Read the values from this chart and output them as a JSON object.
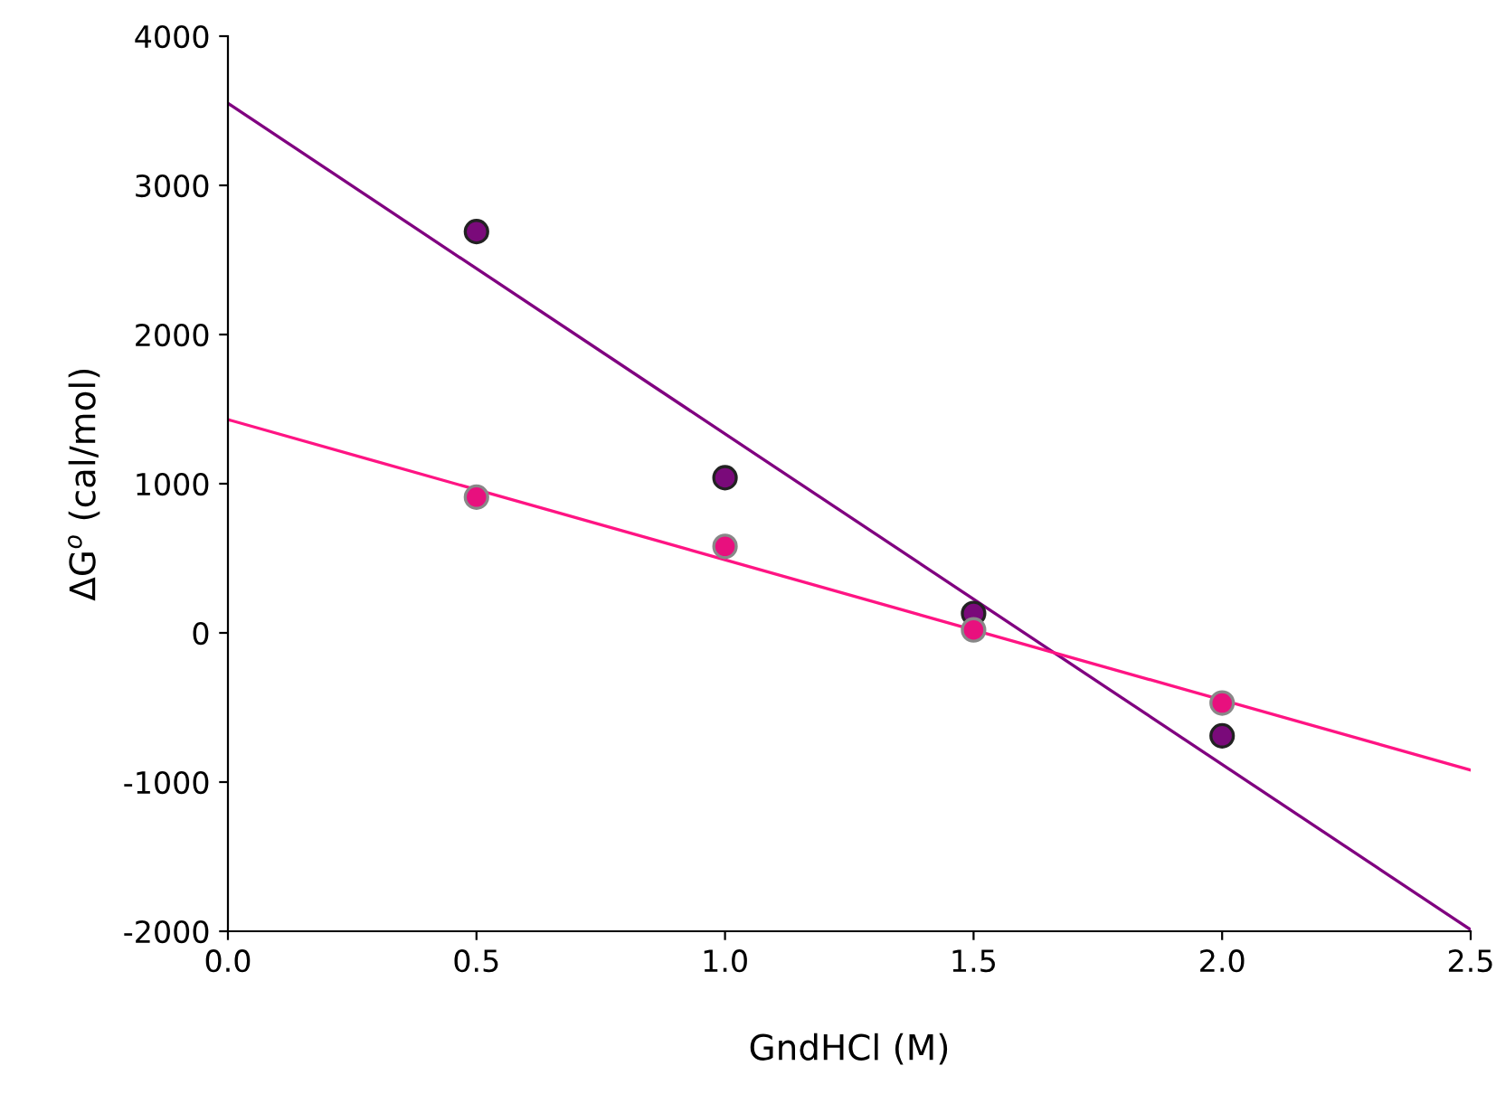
{
  "chart_data": {
    "type": "scatter",
    "xlabel": "GndHCl (M)",
    "ylabel": "ΔG$^{o}$ (cal/mol)",
    "xlim": [
      0,
      2.5
    ],
    "xticks": [
      {
        "value": 0,
        "label": "0.0"
      },
      {
        "value": 0.5,
        "label": "0.5"
      },
      {
        "value": 1,
        "label": "1.0"
      },
      {
        "value": 1.5,
        "label": "1.5"
      },
      {
        "value": 2,
        "label": "2.0"
      },
      {
        "value": 2.5,
        "label": "2.5"
      }
    ],
    "ylim": [
      -2000,
      4000
    ],
    "yticks": [
      -2000,
      -1000,
      0,
      1000,
      2000,
      3000,
      4000
    ],
    "grid": false,
    "series": [
      {
        "type": "line",
        "marker": "none",
        "color": "#800080",
        "x": [
          0,
          2.5
        ],
        "values": [
          3550,
          -1990
        ]
      },
      {
        "type": "line",
        "marker": "none",
        "color": "#ff1483",
        "x": [
          0,
          2.5
        ],
        "values": [
          1430,
          -920
        ]
      },
      {
        "marker": "circle",
        "color": "#7a0a7a",
        "x": [
          0.5,
          1.0,
          1.5,
          2.0
        ],
        "values": [
          2690,
          1040,
          130,
          -690
        ]
      },
      {
        "marker": "circle",
        "color": "#e8107e",
        "x": [
          0.5,
          1.0,
          1.5,
          2.0
        ],
        "values": [
          910,
          580,
          20,
          -470
        ]
      }
    ]
  }
}
